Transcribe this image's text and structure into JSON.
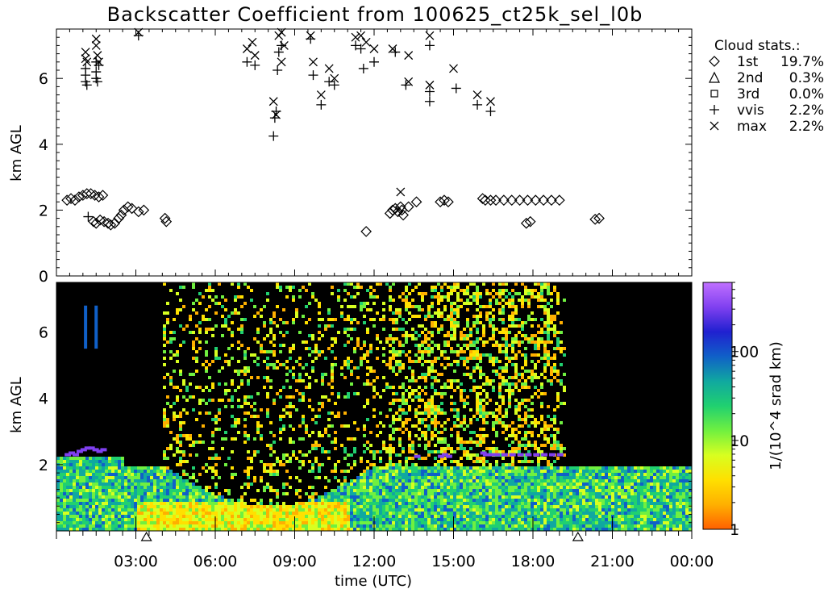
{
  "chart_data": [
    {
      "type": "scatter",
      "title": "Backscatter Coefficient from 100625_ct25k_sel_l0b",
      "ylabel": "km AGL",
      "ylim": [
        0,
        7.5
      ],
      "yticks": [
        "0",
        "2",
        "4",
        "6"
      ],
      "xlim": [
        0,
        24
      ],
      "legend": {
        "title": "Cloud stats.:",
        "placement": "right",
        "entries": [
          {
            "symbol": "diamond",
            "name": "1st",
            "value": "19.7%"
          },
          {
            "symbol": "triangle",
            "name": "2nd",
            "value": "0.3%"
          },
          {
            "symbol": "square",
            "name": "3rd",
            "value": "0.0%"
          },
          {
            "symbol": "plus",
            "name": "vvis",
            "value": "2.2%"
          },
          {
            "symbol": "x",
            "name": "max",
            "value": "2.2%"
          }
        ]
      },
      "series": [
        {
          "name": "1st",
          "marker": "diamond",
          "points": [
            [
              0.4,
              2.3
            ],
            [
              0.55,
              2.35
            ],
            [
              0.7,
              2.3
            ],
            [
              0.85,
              2.4
            ],
            [
              1.0,
              2.45
            ],
            [
              1.15,
              2.5
            ],
            [
              1.3,
              2.5
            ],
            [
              1.45,
              2.45
            ],
            [
              1.6,
              2.4
            ],
            [
              1.75,
              2.45
            ],
            [
              1.4,
              1.65
            ],
            [
              1.5,
              1.6
            ],
            [
              1.65,
              1.7
            ],
            [
              1.8,
              1.65
            ],
            [
              1.95,
              1.6
            ],
            [
              2.05,
              1.55
            ],
            [
              2.2,
              1.6
            ],
            [
              2.35,
              1.75
            ],
            [
              2.45,
              1.85
            ],
            [
              2.55,
              2.0
            ],
            [
              2.7,
              2.1
            ],
            [
              2.85,
              2.05
            ],
            [
              3.1,
              1.95
            ],
            [
              3.3,
              2.0
            ],
            [
              4.1,
              1.75
            ],
            [
              4.15,
              1.65
            ],
            [
              11.7,
              1.35
            ],
            [
              12.6,
              1.9
            ],
            [
              12.7,
              2.0
            ],
            [
              12.8,
              2.05
            ],
            [
              12.9,
              1.95
            ],
            [
              13.0,
              2.1
            ],
            [
              13.05,
              2.0
            ],
            [
              13.1,
              1.85
            ],
            [
              13.3,
              2.1
            ],
            [
              13.6,
              2.25
            ],
            [
              14.5,
              2.25
            ],
            [
              14.65,
              2.3
            ],
            [
              14.8,
              2.25
            ],
            [
              16.1,
              2.35
            ],
            [
              16.2,
              2.3
            ],
            [
              16.4,
              2.3
            ],
            [
              16.6,
              2.3
            ],
            [
              16.9,
              2.3
            ],
            [
              17.2,
              2.3
            ],
            [
              17.5,
              2.3
            ],
            [
              17.8,
              2.3
            ],
            [
              18.1,
              2.3
            ],
            [
              18.4,
              2.3
            ],
            [
              18.7,
              2.3
            ],
            [
              19.0,
              2.3
            ],
            [
              17.75,
              1.6
            ],
            [
              17.9,
              1.65
            ],
            [
              20.35,
              1.72
            ],
            [
              20.5,
              1.75
            ]
          ]
        },
        {
          "name": "vvis",
          "marker": "plus",
          "points": [
            [
              1.1,
              5.9
            ],
            [
              1.1,
              6.1
            ],
            [
              1.1,
              6.3
            ],
            [
              1.15,
              5.8
            ],
            [
              1.5,
              6.0
            ],
            [
              1.5,
              6.2
            ],
            [
              1.5,
              6.5
            ],
            [
              1.55,
              5.9
            ],
            [
              1.6,
              6.4
            ],
            [
              1.2,
              1.8
            ],
            [
              3.1,
              7.3
            ],
            [
              7.2,
              6.5
            ],
            [
              7.5,
              6.4
            ],
            [
              8.2,
              4.25
            ],
            [
              8.25,
              4.8
            ],
            [
              8.3,
              5.0
            ],
            [
              8.35,
              6.25
            ],
            [
              8.4,
              6.8
            ],
            [
              8.5,
              7.0
            ],
            [
              9.6,
              7.2
            ],
            [
              9.7,
              6.1
            ],
            [
              10.0,
              5.2
            ],
            [
              10.3,
              5.9
            ],
            [
              10.5,
              5.8
            ],
            [
              11.3,
              7.0
            ],
            [
              11.5,
              6.9
            ],
            [
              11.6,
              6.3
            ],
            [
              12.0,
              6.5
            ],
            [
              12.8,
              6.8
            ],
            [
              13.2,
              5.8
            ],
            [
              14.1,
              5.3
            ],
            [
              14.1,
              5.6
            ],
            [
              14.1,
              7.0
            ],
            [
              15.1,
              5.7
            ],
            [
              15.9,
              5.2
            ],
            [
              16.4,
              5.0
            ]
          ]
        },
        {
          "name": "max",
          "marker": "x",
          "points": [
            [
              1.1,
              6.8
            ],
            [
              1.1,
              6.6
            ],
            [
              1.15,
              6.5
            ],
            [
              1.5,
              7.2
            ],
            [
              1.5,
              7.0
            ],
            [
              1.55,
              6.7
            ],
            [
              1.6,
              6.5
            ],
            [
              3.1,
              7.4
            ],
            [
              7.2,
              6.9
            ],
            [
              7.4,
              7.1
            ],
            [
              7.5,
              6.7
            ],
            [
              8.2,
              5.3
            ],
            [
              8.3,
              4.9
            ],
            [
              8.4,
              7.3
            ],
            [
              8.5,
              7.4
            ],
            [
              8.6,
              7.0
            ],
            [
              8.5,
              6.5
            ],
            [
              9.6,
              7.3
            ],
            [
              9.7,
              6.5
            ],
            [
              10.0,
              5.5
            ],
            [
              10.3,
              6.3
            ],
            [
              10.5,
              6.0
            ],
            [
              11.3,
              7.25
            ],
            [
              11.5,
              7.3
            ],
            [
              11.7,
              7.1
            ],
            [
              12.0,
              6.9
            ],
            [
              12.7,
              6.9
            ],
            [
              13.0,
              2.55
            ],
            [
              13.3,
              6.7
            ],
            [
              13.3,
              5.9
            ],
            [
              14.1,
              7.3
            ],
            [
              14.1,
              5.8
            ],
            [
              15.0,
              6.3
            ],
            [
              15.9,
              5.5
            ],
            [
              16.4,
              5.3
            ]
          ]
        }
      ]
    },
    {
      "type": "heatmap",
      "ylabel": "km AGL",
      "xlabel": "time (UTC)",
      "ylim": [
        0,
        7.5
      ],
      "yticks": [
        "2",
        "4",
        "6"
      ],
      "xlim": [
        0,
        24
      ],
      "xticks": [
        {
          "hour": 3,
          "label": "03:00"
        },
        {
          "hour": 6,
          "label": "06:00"
        },
        {
          "hour": 9,
          "label": "09:00"
        },
        {
          "hour": 12,
          "label": "12:00"
        },
        {
          "hour": 15,
          "label": "15:00"
        },
        {
          "hour": 18,
          "label": "18:00"
        },
        {
          "hour": 21,
          "label": "21:00"
        },
        {
          "hour": 24,
          "label": "00:00"
        }
      ],
      "triangle_markers_hours": [
        3.4,
        19.7
      ],
      "colorbar": {
        "label": "1/(10^4 srad km)",
        "scale": "log",
        "range": [
          1,
          600
        ],
        "ticks": [
          "1",
          "10",
          "100"
        ],
        "colors": [
          "#ff6000",
          "#ffb000",
          "#ffe000",
          "#d8ff20",
          "#70f040",
          "#20d070",
          "#10a8a0",
          "#1060c8",
          "#2020d0",
          "#8040f0",
          "#c070ff"
        ]
      },
      "features": {
        "cloud_base_km": 2.25,
        "aerosol_layer_top_km": 2.0,
        "noisy_daytime_hours": [
          4.0,
          19.2
        ]
      }
    }
  ]
}
